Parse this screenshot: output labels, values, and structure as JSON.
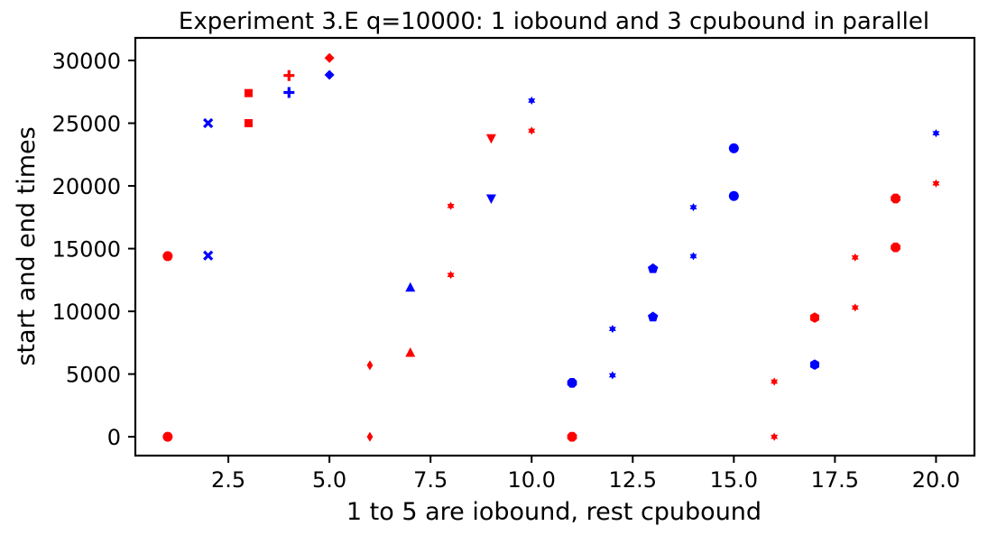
{
  "chart_data": {
    "type": "scatter",
    "title": "Experiment 3.E q=10000: 1 iobound and 3 cpubound in parallel",
    "xlabel": "1 to 5 are iobound, rest cpubound",
    "ylabel": "start and end times",
    "xlim": [
      0.2,
      20.95
    ],
    "ylim": [
      -1500,
      31800
    ],
    "xticks": [
      2.5,
      5.0,
      7.5,
      10.0,
      12.5,
      15.0,
      17.5,
      20.0
    ],
    "xtick_labels": [
      "2.5",
      "5.0",
      "7.5",
      "10.0",
      "12.5",
      "15.0",
      "17.5",
      "20.0"
    ],
    "yticks": [
      0,
      5000,
      10000,
      15000,
      20000,
      25000,
      30000
    ],
    "ytick_labels": [
      "0",
      "5000",
      "10000",
      "15000",
      "20000",
      "25000",
      "30000"
    ],
    "grid": false,
    "colors": {
      "red": "#ff0000",
      "blue": "#0000ff"
    },
    "points": [
      {
        "x": 1,
        "y": 0,
        "color": "red",
        "marker": "circle"
      },
      {
        "x": 1,
        "y": 14400,
        "color": "red",
        "marker": "circle"
      },
      {
        "x": 2,
        "y": 14450,
        "color": "blue",
        "marker": "x"
      },
      {
        "x": 2,
        "y": 25000,
        "color": "blue",
        "marker": "x"
      },
      {
        "x": 3,
        "y": 25000,
        "color": "red",
        "marker": "square"
      },
      {
        "x": 3,
        "y": 27400,
        "color": "red",
        "marker": "square"
      },
      {
        "x": 4,
        "y": 27450,
        "color": "blue",
        "marker": "plus"
      },
      {
        "x": 4,
        "y": 28800,
        "color": "red",
        "marker": "plus"
      },
      {
        "x": 5,
        "y": 28850,
        "color": "blue",
        "marker": "diamond"
      },
      {
        "x": 5,
        "y": 30200,
        "color": "red",
        "marker": "diamond"
      },
      {
        "x": 6,
        "y": 0,
        "color": "red",
        "marker": "thin-diamond"
      },
      {
        "x": 6,
        "y": 5700,
        "color": "red",
        "marker": "thin-diamond"
      },
      {
        "x": 7,
        "y": 6700,
        "color": "red",
        "marker": "triangle-up"
      },
      {
        "x": 7,
        "y": 11900,
        "color": "blue",
        "marker": "triangle-up"
      },
      {
        "x": 8,
        "y": 12900,
        "color": "red",
        "marker": "star"
      },
      {
        "x": 8,
        "y": 18400,
        "color": "red",
        "marker": "star"
      },
      {
        "x": 9,
        "y": 19000,
        "color": "blue",
        "marker": "triangle-down"
      },
      {
        "x": 9,
        "y": 23800,
        "color": "red",
        "marker": "triangle-down"
      },
      {
        "x": 10,
        "y": 24400,
        "color": "red",
        "marker": "star"
      },
      {
        "x": 10,
        "y": 26800,
        "color": "blue",
        "marker": "star"
      },
      {
        "x": 11,
        "y": 0,
        "color": "red",
        "marker": "octagon"
      },
      {
        "x": 11,
        "y": 4300,
        "color": "blue",
        "marker": "octagon"
      },
      {
        "x": 12,
        "y": 4900,
        "color": "blue",
        "marker": "star"
      },
      {
        "x": 12,
        "y": 8600,
        "color": "blue",
        "marker": "star"
      },
      {
        "x": 13,
        "y": 9550,
        "color": "blue",
        "marker": "pentagon"
      },
      {
        "x": 13,
        "y": 13400,
        "color": "blue",
        "marker": "pentagon"
      },
      {
        "x": 14,
        "y": 14400,
        "color": "blue",
        "marker": "star"
      },
      {
        "x": 14,
        "y": 18300,
        "color": "blue",
        "marker": "star"
      },
      {
        "x": 15,
        "y": 19200,
        "color": "blue",
        "marker": "circle"
      },
      {
        "x": 15,
        "y": 23000,
        "color": "blue",
        "marker": "circle"
      },
      {
        "x": 16,
        "y": 0,
        "color": "red",
        "marker": "star"
      },
      {
        "x": 16,
        "y": 4400,
        "color": "red",
        "marker": "star"
      },
      {
        "x": 17,
        "y": 5750,
        "color": "blue",
        "marker": "hexagon"
      },
      {
        "x": 17,
        "y": 9500,
        "color": "red",
        "marker": "hexagon"
      },
      {
        "x": 18,
        "y": 10300,
        "color": "red",
        "marker": "star"
      },
      {
        "x": 18,
        "y": 14300,
        "color": "red",
        "marker": "star"
      },
      {
        "x": 19,
        "y": 15100,
        "color": "red",
        "marker": "octagon"
      },
      {
        "x": 19,
        "y": 19000,
        "color": "red",
        "marker": "octagon"
      },
      {
        "x": 20,
        "y": 20200,
        "color": "red",
        "marker": "star"
      },
      {
        "x": 20,
        "y": 24200,
        "color": "blue",
        "marker": "star"
      }
    ]
  }
}
